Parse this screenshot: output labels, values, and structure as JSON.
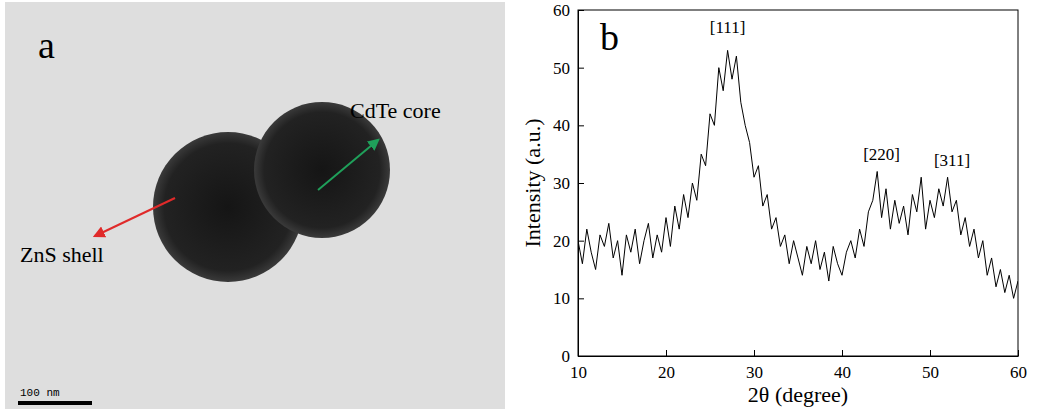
{
  "figure_a": {
    "panel_label": "a",
    "labels": {
      "core": "CdTe core",
      "shell": "ZnS shell"
    },
    "scale_bar": "100 nm"
  },
  "chart_data": {
    "panel_label": "b",
    "type": "line",
    "xlabel": "2θ (degree)",
    "ylabel": "Intensity (a.u.)",
    "x": [
      10,
      10.5,
      11,
      11.5,
      12,
      12.5,
      13,
      13.5,
      14,
      14.5,
      15,
      15.5,
      16,
      16.5,
      17,
      17.5,
      18,
      18.5,
      19,
      19.5,
      20,
      20.5,
      21,
      21.5,
      22,
      22.5,
      23,
      23.5,
      24,
      24.5,
      25,
      25.5,
      26,
      26.5,
      27,
      27.5,
      28,
      28.5,
      29,
      29.5,
      30,
      30.5,
      31,
      31.5,
      32,
      32.5,
      33,
      33.5,
      34,
      34.5,
      35,
      35.5,
      36,
      36.5,
      37,
      37.5,
      38,
      38.5,
      39,
      39.5,
      40,
      40.5,
      41,
      41.5,
      42,
      42.5,
      43,
      43.5,
      44,
      44.5,
      45,
      45.5,
      46,
      46.5,
      47,
      47.5,
      48,
      48.5,
      49,
      49.5,
      50,
      50.5,
      51,
      51.5,
      52,
      52.5,
      53,
      53.5,
      54,
      54.5,
      55,
      55.5,
      56,
      56.5,
      57,
      57.5,
      58,
      58.5,
      59,
      59.5,
      60
    ],
    "series": [
      {
        "color": "#000000",
        "values": [
          20,
          16,
          22,
          18,
          15,
          21,
          19,
          23,
          17,
          20,
          14,
          21,
          18,
          22,
          16,
          20,
          23,
          17,
          21,
          18,
          24,
          19,
          26,
          22,
          28,
          24,
          30,
          27,
          35,
          33,
          42,
          40,
          50,
          46,
          53,
          48,
          52,
          44,
          40,
          37,
          31,
          33,
          26,
          28,
          22,
          24,
          19,
          21,
          16,
          20,
          17,
          14,
          19,
          16,
          20,
          15,
          18,
          13,
          19,
          16,
          14,
          18,
          20,
          17,
          22,
          19,
          25,
          27,
          32,
          24,
          29,
          22,
          27,
          23,
          26,
          21,
          28,
          25,
          31,
          22,
          27,
          24,
          29,
          26,
          31,
          25,
          27,
          21,
          24,
          19,
          22,
          17,
          20,
          14,
          17,
          12,
          15,
          11,
          14,
          10,
          13
        ]
      }
    ],
    "xlim": [
      10,
      60
    ],
    "ylim": [
      0,
      60
    ],
    "xticks": [
      10,
      20,
      30,
      40,
      50,
      60
    ],
    "yticks": [
      0,
      10,
      20,
      30,
      40,
      50,
      60
    ],
    "annotations": [
      {
        "text": "[111]",
        "x": 27,
        "y": 56
      },
      {
        "text": "[220]",
        "x": 44.5,
        "y": 34
      },
      {
        "text": "[311]",
        "x": 52.5,
        "y": 33
      }
    ]
  }
}
